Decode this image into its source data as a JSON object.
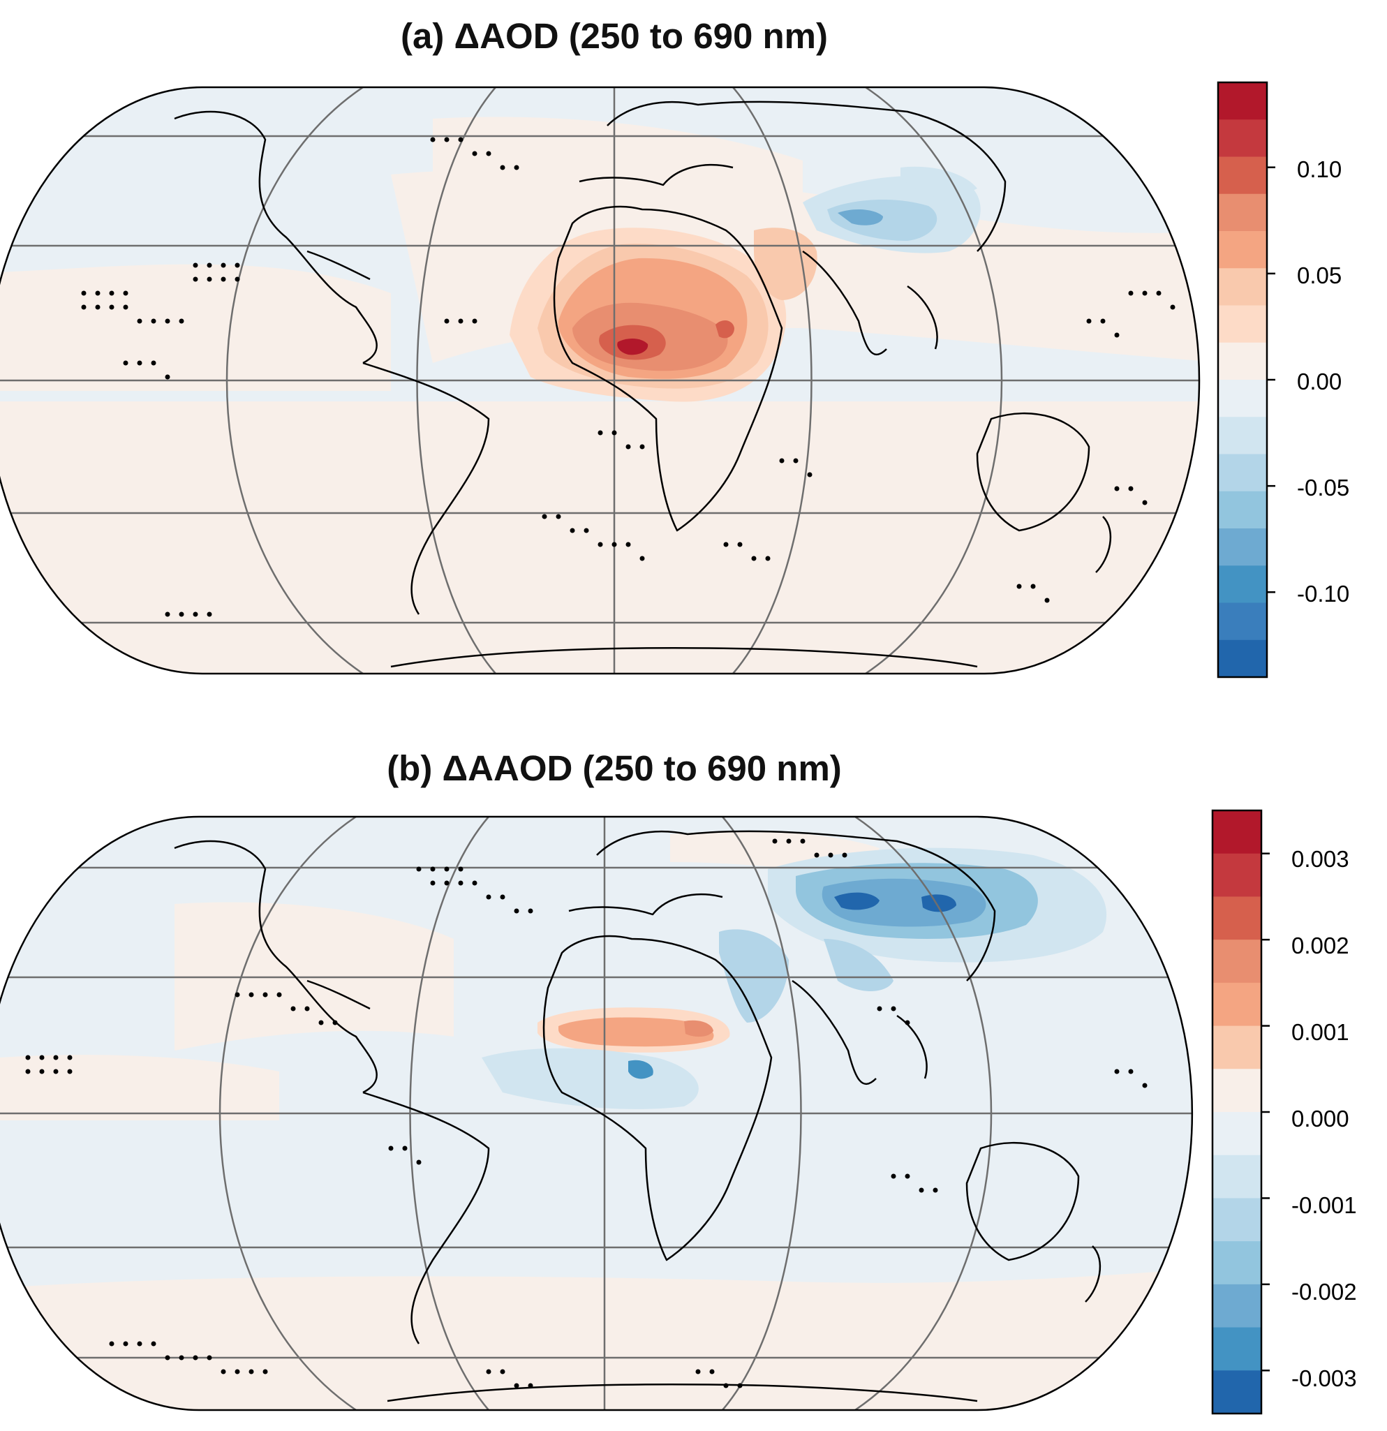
{
  "panels": [
    {
      "id": "a",
      "title_prefix": "(a)",
      "title": "ΔAOD (250 to 690 nm)",
      "colorbar": {
        "ticks": [
          "0.10",
          "0.05",
          "0.00",
          "-0.05",
          "-0.10"
        ],
        "tick_values": [
          0.1,
          0.05,
          0.0,
          -0.05,
          -0.1
        ],
        "range": [
          -0.14,
          0.14
        ],
        "colors_top_to_bottom": [
          "#b2182b",
          "#c4393e",
          "#d6604d",
          "#e88e70",
          "#f4a582",
          "#f9c9ad",
          "#fddbc7",
          "#f8efe9",
          "#e9f0f5",
          "#d1e5f0",
          "#b3d5e8",
          "#92c5de",
          "#6eaad1",
          "#4393c3",
          "#3a7ebc",
          "#2166ac"
        ]
      }
    },
    {
      "id": "b",
      "title_prefix": "(b)",
      "title": "ΔAAOD (250 to 690 nm)",
      "colorbar": {
        "ticks": [
          "0.003",
          "0.002",
          "0.001",
          "0.000",
          "-0.001",
          "-0.002",
          "-0.003"
        ],
        "tick_values": [
          0.003,
          0.002,
          0.001,
          0.0,
          -0.001,
          -0.002,
          -0.003
        ],
        "range": [
          -0.0035,
          0.0035
        ],
        "colors_top_to_bottom": [
          "#b2182b",
          "#c4393e",
          "#d6604d",
          "#e88e70",
          "#f4a582",
          "#f9c9ad",
          "#f8efe9",
          "#e9f0f5",
          "#d1e5f0",
          "#b3d5e8",
          "#92c5de",
          "#6eaad1",
          "#4393c3",
          "#2166ac"
        ]
      }
    }
  ],
  "colors": {
    "ocean_background_positive": "#f8efe9",
    "ocean_background_negative": "#e9f0f5",
    "grid_lines": "#6e6e6e",
    "coastlines": "#000000"
  }
}
